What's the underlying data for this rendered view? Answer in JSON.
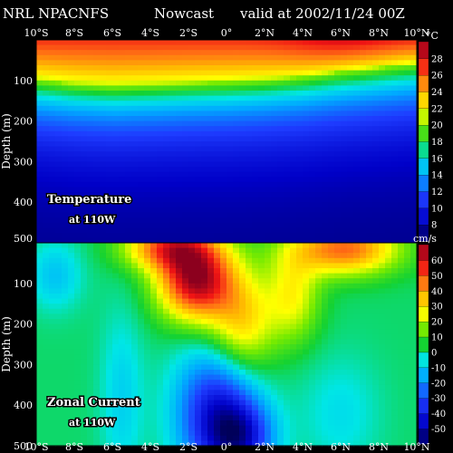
{
  "header": {
    "source": "NRL NPACNFS",
    "mode": "Nowcast",
    "valid": "valid at 2002/11/24 00Z"
  },
  "colors": {
    "background": "#000000",
    "text": "#ffffff",
    "label_outline": "#000000"
  },
  "chart_data": [
    {
      "type": "heatmap",
      "title": "Temperature",
      "subtitle": "at 110W",
      "ylabel": "Depth (m)",
      "colorbar_unit": "°C",
      "x_ticks": [
        "10°S",
        "8°S",
        "6°S",
        "4°S",
        "2°S",
        "0°",
        "2°N",
        "4°N",
        "6°N",
        "8°N",
        "10°N"
      ],
      "x_values": [
        -10,
        -8,
        -6,
        -4,
        -2,
        0,
        2,
        4,
        6,
        8,
        10
      ],
      "y_ticks": [
        "100",
        "200",
        "300",
        "400",
        "500"
      ],
      "y_values": [
        100,
        200,
        300,
        400,
        500
      ],
      "ylim": [
        0,
        500
      ],
      "colorbar_ticks": [
        8,
        10,
        12,
        14,
        16,
        18,
        20,
        22,
        24,
        26,
        28
      ],
      "colorbar_range": [
        6,
        30
      ],
      "thermocline_depth": {
        "x": [
          -10,
          -8,
          -6,
          -4,
          -2,
          0,
          2,
          4,
          6,
          8,
          10
        ],
        "depth_20C": [
          100,
          110,
          115,
          112,
          108,
          105,
          100,
          92,
          80,
          70,
          60
        ]
      }
    },
    {
      "type": "heatmap",
      "title": "Zonal Current",
      "subtitle": "at 110W",
      "ylabel": "Depth (m)",
      "colorbar_unit": "cm/s",
      "x_ticks": [
        "10°S",
        "8°S",
        "6°S",
        "4°S",
        "2°S",
        "0°",
        "2°N",
        "4°N",
        "6°N",
        "8°N",
        "10°N"
      ],
      "x_values": [
        -10,
        -8,
        -6,
        -4,
        -2,
        0,
        2,
        4,
        6,
        8,
        10
      ],
      "y_ticks": [
        "100",
        "200",
        "300",
        "400",
        "500"
      ],
      "y_values": [
        100,
        200,
        300,
        400,
        500
      ],
      "ylim": [
        0,
        500
      ],
      "colorbar_ticks": [
        -50,
        -40,
        -30,
        -20,
        -10,
        0,
        10,
        20,
        30,
        40,
        50,
        60
      ],
      "colorbar_range": [
        -55,
        65
      ],
      "features": [
        {
          "x": -1.5,
          "depth": 80,
          "value": 55
        },
        {
          "x": -3,
          "depth": 20,
          "value": 45
        },
        {
          "x": 6,
          "depth": 20,
          "value": 45
        },
        {
          "x": 1,
          "depth": 180,
          "value": 30
        },
        {
          "x": -0.5,
          "depth": 400,
          "value": -30
        },
        {
          "x": 0.5,
          "depth": 470,
          "value": -45
        },
        {
          "x": -9,
          "depth": 80,
          "value": -5
        }
      ]
    }
  ]
}
